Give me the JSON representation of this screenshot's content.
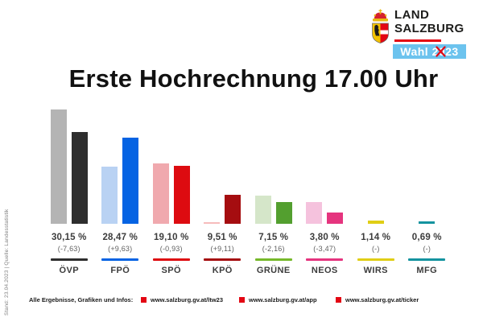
{
  "brand": {
    "name_line1": "LAND",
    "name_line2": "SALZBURG",
    "badge_label": "Wahl 2023",
    "badge_bg": "#6cc3ee",
    "brand_red": "#e30613"
  },
  "title": "Erste Hochrechnung 17.00 Uhr",
  "source_note": "Stand: 23.04.2023 | Quelle: Landesstatistik",
  "chart_data": {
    "type": "bar",
    "title": "Erste Hochrechnung 17.00 Uhr",
    "unit": "percent",
    "ylim": [
      0,
      40
    ],
    "grid": false,
    "legend_position": "none",
    "note": "paired bars per party: light = previous result, dark = current projection; WIRS and MFG have no previous result",
    "categories": [
      "ÖVP",
      "FPÖ",
      "SPÖ",
      "KPÖ",
      "GRÜNE",
      "NEOS",
      "WIRS",
      "MFG"
    ],
    "series": [
      {
        "name": "previous",
        "values": [
          37.78,
          18.84,
          20.03,
          0.4,
          9.31,
          7.27,
          null,
          null
        ]
      },
      {
        "name": "current",
        "values": [
          30.15,
          28.47,
          19.1,
          9.51,
          7.15,
          3.8,
          1.14,
          0.69
        ]
      }
    ],
    "parties": [
      {
        "name": "ÖVP",
        "current": 30.15,
        "previous": 37.78,
        "value_label": "30,15 %",
        "change_label": "(-7,63)",
        "color": "#2e2e2e",
        "light_color": "#b4b4b4",
        "line_color": "#2e2e2e"
      },
      {
        "name": "FPÖ",
        "current": 28.47,
        "previous": 18.84,
        "value_label": "28,47 %",
        "change_label": "(+9,63)",
        "color": "#0563e3",
        "light_color": "#b9d2f3",
        "line_color": "#0563e3"
      },
      {
        "name": "SPÖ",
        "current": 19.1,
        "previous": 20.03,
        "value_label": "19,10 %",
        "change_label": "(-0,93)",
        "color": "#dd0b10",
        "light_color": "#f0a9ae",
        "line_color": "#dd0b10"
      },
      {
        "name": "KPÖ",
        "current": 9.51,
        "previous": 0.4,
        "value_label": "9,51 %",
        "change_label": "(+9,11)",
        "color": "#a50d10",
        "light_color": "#f6bcbc",
        "line_color": "#a50d10"
      },
      {
        "name": "GRÜNE",
        "current": 7.15,
        "previous": 9.31,
        "value_label": "7,15 %",
        "change_label": "(-2,16)",
        "color": "#539f2f",
        "light_color": "#d5e6c9",
        "line_color": "#76b82a"
      },
      {
        "name": "NEOS",
        "current": 3.8,
        "previous": 7.27,
        "value_label": "3,80 %",
        "change_label": "(-3,47)",
        "color": "#e5347e",
        "light_color": "#f5c2dd",
        "line_color": "#e5347e"
      },
      {
        "name": "WIRS",
        "current": 1.14,
        "previous": null,
        "value_label": "1,14 %",
        "change_label": "(-)",
        "color": "#e0ce15",
        "light_color": null,
        "line_color": "#e0ce15"
      },
      {
        "name": "MFG",
        "current": 0.69,
        "previous": null,
        "value_label": "0,69 %",
        "change_label": "(-)",
        "color": "#14939f",
        "light_color": null,
        "line_color": "#14939f"
      }
    ]
  },
  "footer": {
    "label": "Alle Ergebnisse, Grafiken und Infos:",
    "links": [
      "www.salzburg.gv.at/ltw23",
      "www.salzburg.gv.at/app",
      "www.salzburg.gv.at/ticker"
    ]
  }
}
